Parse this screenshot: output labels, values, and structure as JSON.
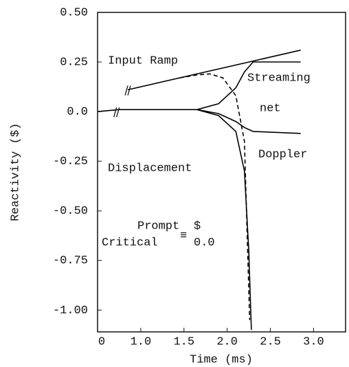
{
  "chart_data": {
    "type": "line",
    "y_label": "Reactivity ($)",
    "x_label": "Time (ms)",
    "xlim": [
      0.5,
      3.37
    ],
    "ylim": [
      -1.11,
      0.5
    ],
    "xticks": [
      {
        "value": 0.5,
        "label": "0"
      },
      {
        "value": 1,
        "label": "1.0"
      },
      1.5,
      {
        "value": 2,
        "label": "2.0"
      },
      2.5,
      {
        "value": 3,
        "label": "3.0"
      }
    ],
    "yticks": [
      {
        "value": 0.5,
        "label": "0.50"
      },
      0.25,
      {
        "value": 0,
        "label": "0.0"
      },
      -0.25,
      {
        "value": -0.5,
        "label": "-0.50"
      },
      -0.75,
      {
        "value": -1,
        "label": "-1.00"
      }
    ],
    "grid": false,
    "series": [
      {
        "name": "Input Ramp",
        "color": "#000000",
        "dashed": false,
        "x": [
          0.85,
          2.85
        ],
        "values": [
          0.11,
          0.31
        ]
      },
      {
        "name": "Streaming",
        "color": "#000000",
        "dashed": false,
        "x": [
          0.5,
          0.75,
          1.0,
          1.5,
          1.65,
          1.9,
          2.1,
          2.2,
          2.3,
          2.85
        ],
        "values": [
          0.0,
          0.01,
          0.01,
          0.01,
          0.01,
          0.04,
          0.12,
          0.2,
          0.25,
          0.25
        ]
      },
      {
        "name": "net",
        "color": "#000000",
        "dashed": true,
        "x": [
          1.45,
          1.65,
          1.8,
          1.95,
          2.1,
          2.2,
          2.23,
          2.26
        ],
        "values": [
          0.17,
          0.185,
          0.19,
          0.17,
          0.08,
          -0.15,
          -0.6,
          -1.05
        ]
      },
      {
        "name": "Doppler",
        "color": "#000000",
        "dashed": false,
        "x": [
          1.65,
          1.9,
          2.1,
          2.2,
          2.3,
          2.85
        ],
        "values": [
          0.01,
          -0.01,
          -0.05,
          -0.08,
          -0.1,
          -0.11
        ]
      },
      {
        "name": "Displacement",
        "color": "#000000",
        "dashed": false,
        "x": [
          1.65,
          1.9,
          2.1,
          2.2,
          2.25,
          2.28
        ],
        "values": [
          0.01,
          -0.02,
          -0.1,
          -0.3,
          -0.7,
          -1.1
        ]
      }
    ],
    "annotations": [
      "Prompt",
      "Critical",
      "≡",
      "$",
      "0.0"
    ]
  }
}
